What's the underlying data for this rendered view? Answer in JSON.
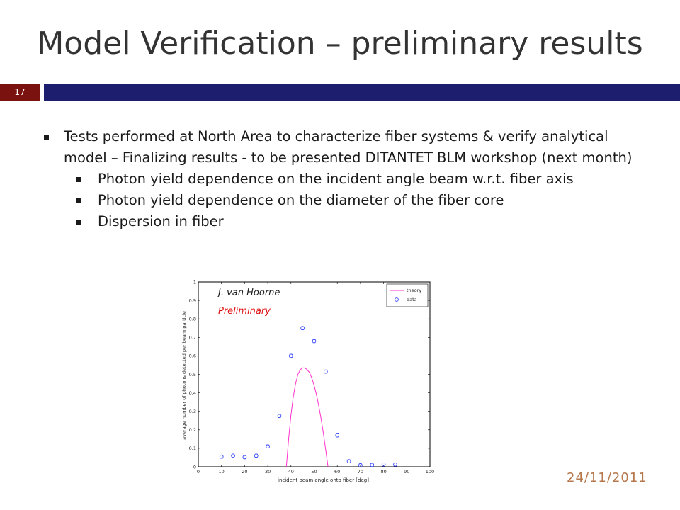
{
  "slide": {
    "title": "Model Verification – preliminary results",
    "number": "17",
    "date": "24/11/2011",
    "colors": {
      "accent": "#1e1e6e",
      "number_bg": "#7a1210",
      "date": "#b5774b"
    }
  },
  "bullets": [
    {
      "level": 1,
      "text": "Tests performed at North Area to characterize fiber systems & verify analytical model – Finalizing results - to be presented DITANTET BLM workshop (next month)"
    },
    {
      "level": 2,
      "text": "Photon yield dependence on the incident angle beam w.r.t. fiber axis"
    },
    {
      "level": 2,
      "text": "Photon yield dependence on the diameter of the fiber core"
    },
    {
      "level": 2,
      "text": "Dispersion in fiber"
    }
  ],
  "chart_data": {
    "type": "scatter",
    "xlabel": "incident beam angle onto fiber [deg]",
    "ylabel": "average number of photons detected per beam particle",
    "xlim": [
      0,
      100
    ],
    "ylim": [
      0,
      1
    ],
    "xticks": [
      "0",
      "10",
      "20",
      "30",
      "40",
      "50",
      "60",
      "70",
      "80",
      "90",
      "100"
    ],
    "yticks": [
      "0",
      "0.1",
      "0.2",
      "0.3",
      "0.4",
      "0.5",
      "0.6",
      "0.7",
      "0.8",
      "0.9",
      "1"
    ],
    "annotations": {
      "author": "J. van Hoorne",
      "status": "Preliminary"
    },
    "grid": false,
    "legend_position": "top-right",
    "series": [
      {
        "name": "theory",
        "style": "line",
        "color": "#ff33cc",
        "x": [
          38,
          39,
          40,
          41,
          42,
          43,
          44,
          45,
          46,
          47,
          48,
          49,
          50,
          51,
          52,
          53,
          54,
          55,
          56
        ],
        "y": [
          0,
          0.15,
          0.28,
          0.38,
          0.45,
          0.5,
          0.525,
          0.535,
          0.535,
          0.525,
          0.51,
          0.48,
          0.44,
          0.39,
          0.33,
          0.26,
          0.18,
          0.09,
          0
        ]
      },
      {
        "name": "data",
        "style": "markers",
        "color": "#3344ff",
        "x": [
          10,
          15,
          20,
          25,
          30,
          35,
          40,
          45,
          50,
          55,
          60,
          65,
          70,
          75,
          80,
          85
        ],
        "y": [
          0.055,
          0.06,
          0.052,
          0.06,
          0.11,
          0.275,
          0.6,
          0.75,
          0.68,
          0.515,
          0.17,
          0.03,
          0.008,
          0.01,
          0.012,
          0.012
        ]
      }
    ]
  }
}
